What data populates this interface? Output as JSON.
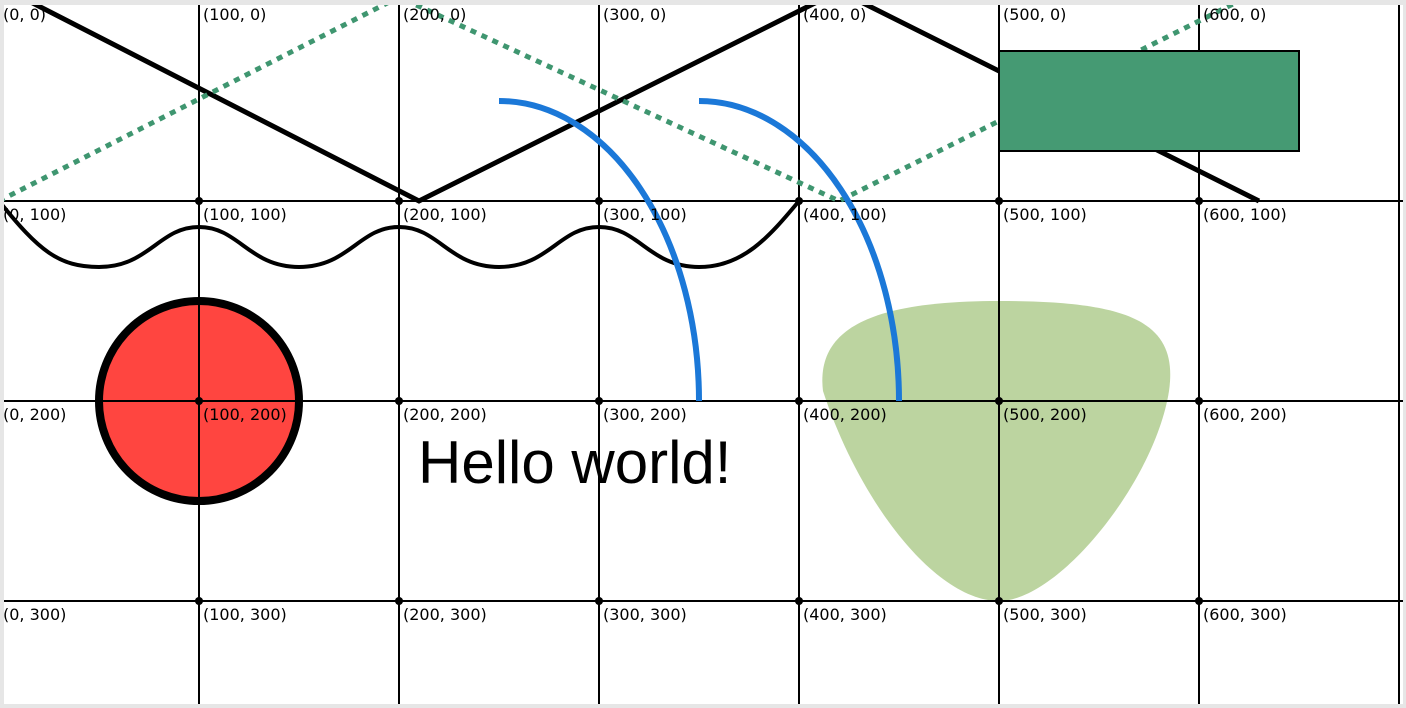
{
  "labels": [
    [
      "(0, 0)",
      "(100, 0)",
      "(200, 0)",
      "(300, 0)",
      "(400, 0)",
      "(500, 0)",
      "(600, 0)"
    ],
    [
      "(0, 100)",
      "(100, 100)",
      "(200, 100)",
      "(300, 100)",
      "(400, 100)",
      "(500, 100)",
      "(600, 100)"
    ],
    [
      "(0, 200)",
      "(100, 200)",
      "(200, 200)",
      "(300, 200)",
      "(400, 200)",
      "(500, 200)",
      "(600, 200)"
    ],
    [
      "(0, 300)",
      "(100, 300)",
      "(200, 300)",
      "(300, 300)",
      "(400, 300)",
      "(500, 300)",
      "(600, 300)"
    ]
  ],
  "text": "Hello world!"
}
